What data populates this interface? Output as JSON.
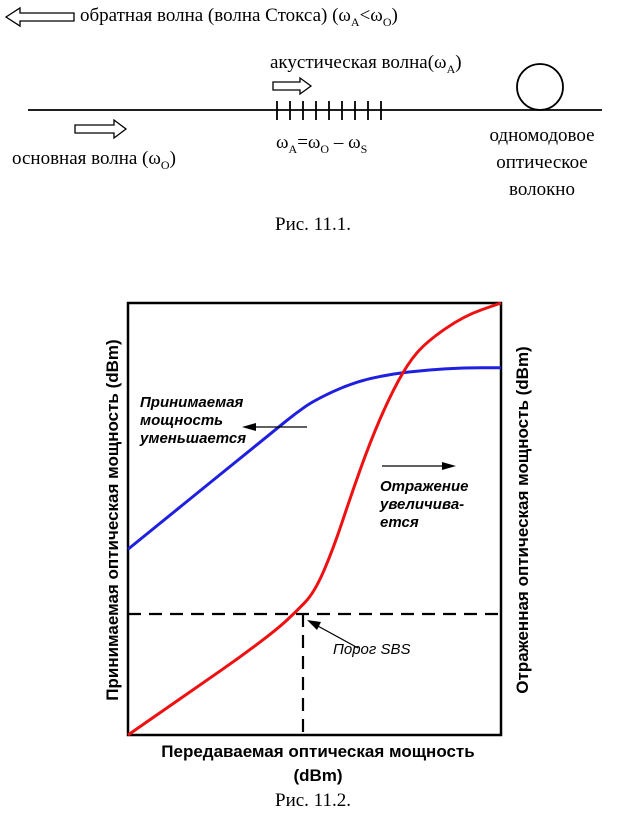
{
  "figure1": {
    "backward_wave_label": "обратная волна (волна Стокса) (ω",
    "backward_wave_rel": "<ω",
    "backward_wave_close": ")",
    "sub_A": "A",
    "sub_O": "O",
    "sub_S": "S",
    "acoustic_wave_label": "акустическая волна(ω",
    "acoustic_close": ")",
    "pump_wave_label": "основная волна (ω",
    "pump_close": ")",
    "omega": "ω",
    "equation_eq": "=ω",
    "equation_minus": " – ω",
    "fiber_label_line1": "одномодовое",
    "fiber_label_line2": "оптическое",
    "fiber_label_line3": "волокно",
    "caption": "Рис. 11.1."
  },
  "figure2": {
    "caption": "Рис. 11.2.",
    "left_axis_label": "Принимаемая оптическая мощность (dBm)",
    "right_axis_label": "Отраженная оптическая мощность (dBm)",
    "x_axis_label_line1": "Передаваемая оптическая мощность",
    "x_axis_label_line2": "(dBm)",
    "annotation_received_1": "Принимаемая",
    "annotation_received_2": "мощность",
    "annotation_received_3": "уменьшается",
    "annotation_reflected_1": "Отражение",
    "annotation_reflected_2": "увеличива-",
    "annotation_reflected_3": "ется",
    "annotation_threshold": "Порог SBS",
    "colors": {
      "received": "#1f1fe0",
      "reflected": "#ee1111"
    }
  },
  "chart_data": {
    "type": "line",
    "title": "",
    "xlabel": "Передаваемая оптическая мощность (dBm)",
    "ylabel": "Принимаемая оптическая мощность (dBm)",
    "y2label": "Отраженная оптическая мощность (dBm)",
    "xlim": [
      0,
      1
    ],
    "ylim": [
      0,
      1
    ],
    "grid": false,
    "series": [
      {
        "x": [
          0.0,
          0.1,
          0.2,
          0.3,
          0.4,
          0.45,
          0.5,
          0.6,
          0.7,
          0.8,
          0.9,
          1.0
        ],
        "y": [
          0.43,
          0.5,
          0.57,
          0.64,
          0.71,
          0.745,
          0.775,
          0.815,
          0.835,
          0.845,
          0.85,
          0.85
        ],
        "color": "#1f1fe0"
      },
      {
        "x": [
          0.0,
          0.1,
          0.2,
          0.3,
          0.4,
          0.45,
          0.5,
          0.55,
          0.6,
          0.65,
          0.7,
          0.75,
          0.8,
          0.9,
          1.0
        ],
        "y": [
          0.0,
          0.06,
          0.12,
          0.18,
          0.245,
          0.285,
          0.33,
          0.43,
          0.56,
          0.68,
          0.78,
          0.86,
          0.91,
          0.97,
          1.0
        ],
        "color": "#ee1111"
      }
    ],
    "threshold": {
      "x": 0.45,
      "y": 0.285
    }
  }
}
